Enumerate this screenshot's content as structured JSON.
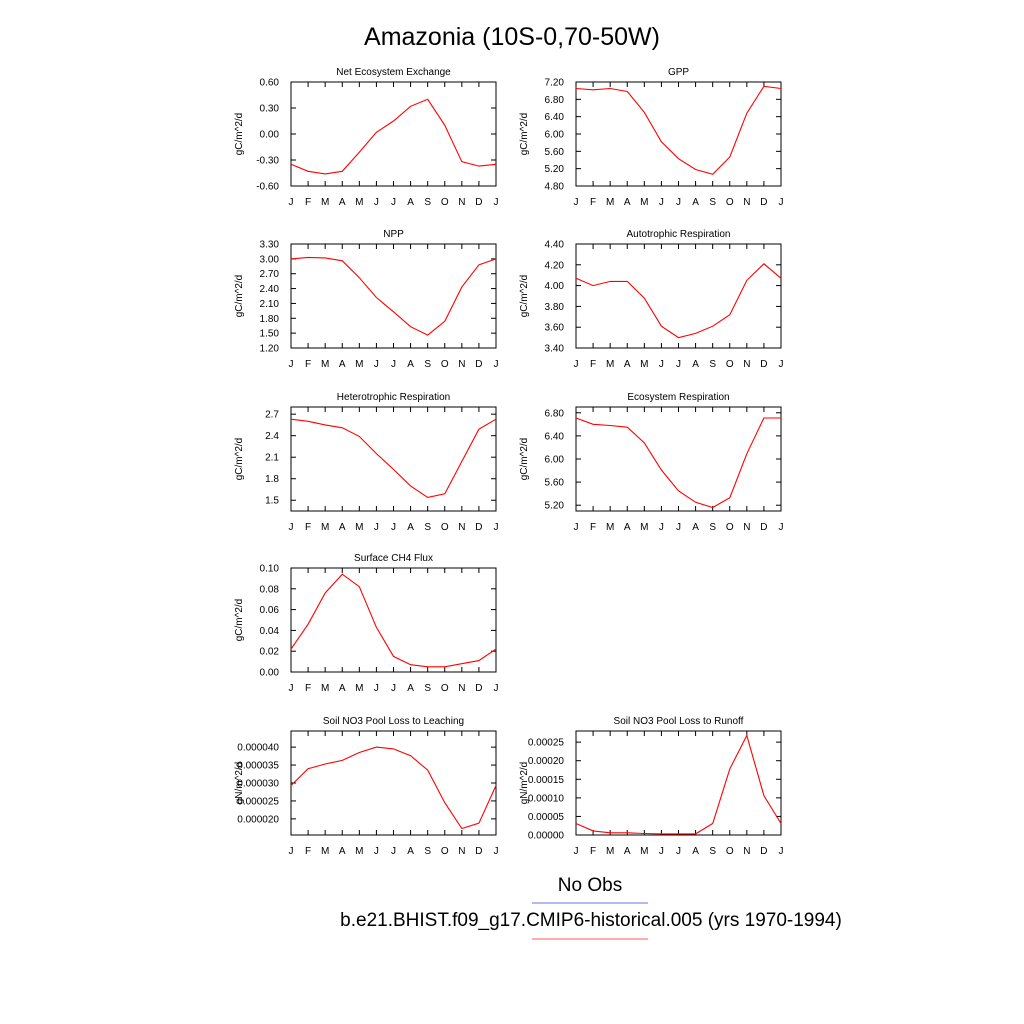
{
  "page_title": "Amazonia (10S-0,70-50W)",
  "legend": {
    "obs_label": "No Obs",
    "obs_color": "#6f6fe8",
    "model_label": "b.e21.BHIST.f09_g17.CMIP6-historical.005 (yrs 1970-1994)",
    "model_color": "#ff5a5a"
  },
  "colors": {
    "line": "#ff0000",
    "axis": "#000000"
  },
  "months": [
    "J",
    "F",
    "M",
    "A",
    "M",
    "J",
    "J",
    "A",
    "S",
    "O",
    "N",
    "D",
    "J"
  ],
  "chart_data": [
    {
      "type": "line",
      "title": "Net Ecosystem Exchange",
      "ylabel": "gC/m^2/d",
      "ylim": [
        -0.6,
        0.6
      ],
      "yticks": [
        "-0.60",
        "-0.30",
        "0.00",
        "0.30",
        "0.60"
      ],
      "x": [
        "J",
        "F",
        "M",
        "A",
        "M",
        "J",
        "J",
        "A",
        "S",
        "O",
        "N",
        "D",
        "J"
      ],
      "values": [
        -0.35,
        -0.43,
        -0.46,
        -0.43,
        -0.21,
        0.02,
        0.15,
        0.32,
        0.4,
        0.1,
        -0.32,
        -0.37,
        -0.35
      ]
    },
    {
      "type": "line",
      "title": "GPP",
      "ylabel": "gC/m^2/d",
      "ylim": [
        4.8,
        7.2
      ],
      "yticks": [
        "4.80",
        "5.20",
        "5.60",
        "6.00",
        "6.40",
        "6.80",
        "7.20"
      ],
      "x": [
        "J",
        "F",
        "M",
        "A",
        "M",
        "J",
        "J",
        "A",
        "S",
        "O",
        "N",
        "D",
        "J"
      ],
      "values": [
        7.05,
        7.02,
        7.05,
        6.98,
        6.5,
        5.82,
        5.43,
        5.18,
        5.07,
        5.47,
        6.48,
        7.1,
        7.05
      ]
    },
    {
      "type": "line",
      "title": "NPP",
      "ylabel": "gC/m^2/d",
      "ylim": [
        1.2,
        3.3
      ],
      "yticks": [
        "1.20",
        "1.50",
        "1.80",
        "2.10",
        "2.40",
        "2.70",
        "3.00",
        "3.30"
      ],
      "x": [
        "J",
        "F",
        "M",
        "A",
        "M",
        "J",
        "J",
        "A",
        "S",
        "O",
        "N",
        "D",
        "J"
      ],
      "values": [
        3.0,
        3.03,
        3.02,
        2.96,
        2.62,
        2.22,
        1.93,
        1.63,
        1.46,
        1.74,
        2.43,
        2.88,
        3.0
      ]
    },
    {
      "type": "line",
      "title": "Autotrophic Respiration",
      "ylabel": "gC/m^2/d",
      "ylim": [
        3.4,
        4.4
      ],
      "yticks": [
        "3.40",
        "3.60",
        "3.80",
        "4.00",
        "4.20",
        "4.40"
      ],
      "x": [
        "J",
        "F",
        "M",
        "A",
        "M",
        "J",
        "J",
        "A",
        "S",
        "O",
        "N",
        "D",
        "J"
      ],
      "values": [
        4.07,
        4.0,
        4.04,
        4.04,
        3.88,
        3.61,
        3.5,
        3.54,
        3.61,
        3.72,
        4.05,
        4.21,
        4.07
      ]
    },
    {
      "type": "line",
      "title": "Heterotrophic Respiration",
      "ylabel": "gC/m^2/d",
      "ylim": [
        1.35,
        2.8
      ],
      "yticks": [
        "1.5",
        "1.8",
        "2.1",
        "2.4",
        "2.7"
      ],
      "x": [
        "J",
        "F",
        "M",
        "A",
        "M",
        "J",
        "J",
        "A",
        "S",
        "O",
        "N",
        "D",
        "J"
      ],
      "values": [
        2.63,
        2.6,
        2.55,
        2.51,
        2.39,
        2.15,
        1.93,
        1.7,
        1.54,
        1.59,
        2.04,
        2.49,
        2.63
      ]
    },
    {
      "type": "line",
      "title": "Ecosystem Respiration",
      "ylabel": "gC/m^2/d",
      "ylim": [
        5.1,
        6.9
      ],
      "yticks": [
        "5.20",
        "5.60",
        "6.00",
        "6.40",
        "6.80"
      ],
      "x": [
        "J",
        "F",
        "M",
        "A",
        "M",
        "J",
        "J",
        "A",
        "S",
        "O",
        "N",
        "D",
        "J"
      ],
      "values": [
        6.71,
        6.6,
        6.58,
        6.55,
        6.28,
        5.81,
        5.45,
        5.25,
        5.16,
        5.33,
        6.09,
        6.71,
        6.71
      ]
    },
    {
      "type": "line",
      "title": "Surface CH4 Flux",
      "ylabel": "gC/m^2/d",
      "ylim": [
        0.0,
        0.1
      ],
      "yticks": [
        "0.00",
        "0.02",
        "0.04",
        "0.06",
        "0.08",
        "0.10"
      ],
      "x": [
        "J",
        "F",
        "M",
        "A",
        "M",
        "J",
        "J",
        "A",
        "S",
        "O",
        "N",
        "D",
        "J"
      ],
      "values": [
        0.022,
        0.046,
        0.076,
        0.094,
        0.082,
        0.043,
        0.015,
        0.007,
        0.005,
        0.005,
        0.008,
        0.011,
        0.022
      ]
    },
    {
      "type": "line",
      "title": "Soil NO3 Pool Loss to Leaching",
      "ylabel": "gN/m^2/d",
      "ylim": [
        1.55e-05,
        4.45e-05
      ],
      "yticks": [
        "0.000020",
        "0.000025",
        "0.000030",
        "0.000035",
        "0.000040"
      ],
      "x": [
        "J",
        "F",
        "M",
        "A",
        "M",
        "J",
        "J",
        "A",
        "S",
        "O",
        "N",
        "D",
        "J"
      ],
      "values": [
        2.93e-05,
        3.4e-05,
        3.53e-05,
        3.63e-05,
        3.85e-05,
        4e-05,
        3.95e-05,
        3.76e-05,
        3.36e-05,
        2.45e-05,
        1.73e-05,
        1.88e-05,
        2.93e-05
      ]
    },
    {
      "type": "line",
      "title": "Soil NO3 Pool Loss to Runoff",
      "ylabel": "gN/m^2/d",
      "ylim": [
        0.0,
        0.00028
      ],
      "yticks": [
        "0.00000",
        "0.00005",
        "0.00010",
        "0.00015",
        "0.00020",
        "0.00025"
      ],
      "x": [
        "J",
        "F",
        "M",
        "A",
        "M",
        "J",
        "J",
        "A",
        "S",
        "O",
        "N",
        "D",
        "J"
      ],
      "values": [
        3.1e-05,
        1.1e-05,
        6e-06,
        6e-06,
        4e-06,
        3e-06,
        3e-06,
        3e-06,
        3.1e-05,
        0.000178,
        0.000268,
        0.000106,
        3.1e-05
      ]
    }
  ]
}
